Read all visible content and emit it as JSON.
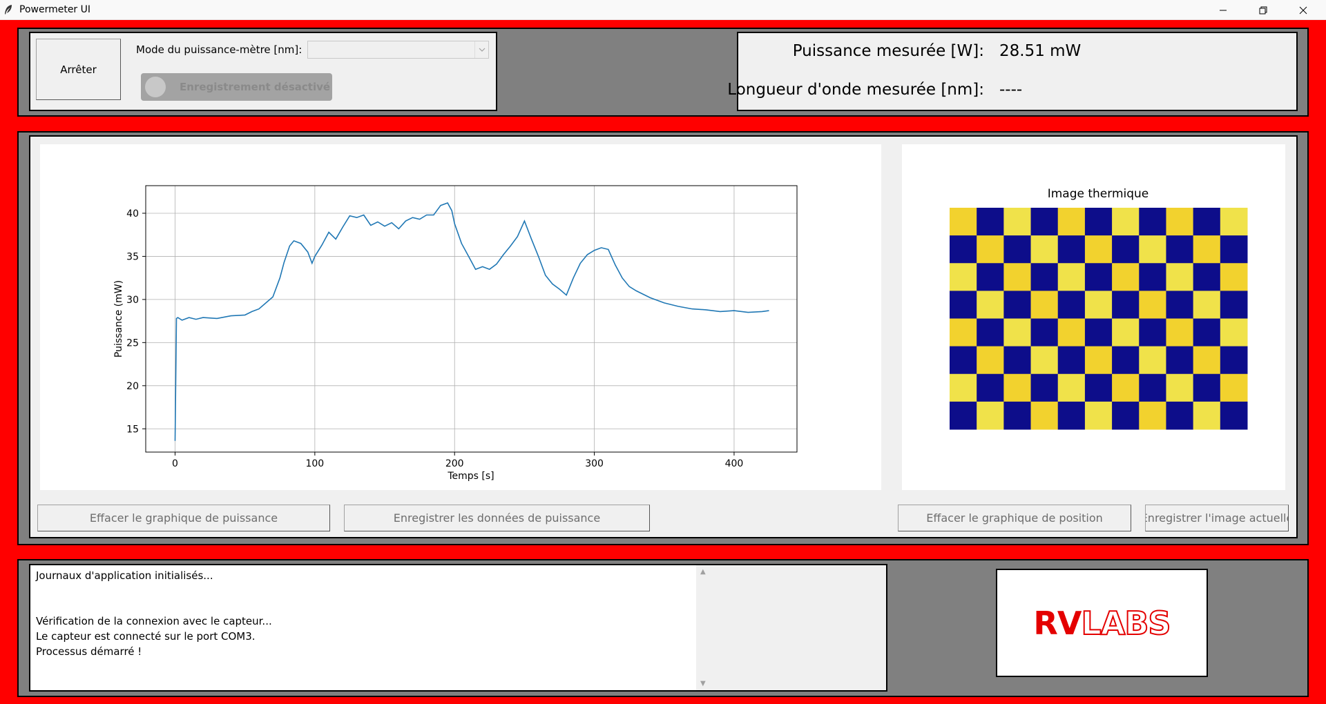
{
  "window": {
    "title": "Powermeter UI"
  },
  "controls": {
    "stop_label": "Arrêter",
    "mode_label": "Mode du puissance-mètre [nm]:",
    "mode_value": "",
    "record_label": "Enregistrement désactivé"
  },
  "measurements": {
    "power_label": "Puissance mesurée [W]:",
    "power_value": "28.51 mW",
    "wavelength_label": "Longueur d'onde mesurée [nm]:",
    "wavelength_value": "----"
  },
  "chart_data": [
    {
      "type": "line",
      "title": "",
      "xlabel": "Temps [s]",
      "ylabel": "Puissance (mW)",
      "xlim": [
        -21,
        445
      ],
      "ylim": [
        12.3,
        43.2
      ],
      "xticks": [
        0,
        100,
        200,
        300,
        400
      ],
      "yticks": [
        15,
        20,
        25,
        30,
        35,
        40
      ],
      "grid": true,
      "color": "#1f77b4",
      "x": [
        0,
        1,
        2,
        5,
        10,
        15,
        20,
        30,
        40,
        50,
        55,
        60,
        70,
        75,
        78,
        82,
        85,
        90,
        95,
        98,
        100,
        105,
        110,
        115,
        120,
        125,
        130,
        135,
        140,
        145,
        150,
        155,
        160,
        165,
        170,
        175,
        180,
        185,
        190,
        195,
        198,
        200,
        205,
        210,
        215,
        220,
        225,
        230,
        235,
        240,
        245,
        250,
        255,
        260,
        265,
        270,
        275,
        280,
        285,
        290,
        295,
        300,
        305,
        310,
        315,
        320,
        325,
        330,
        340,
        350,
        360,
        370,
        380,
        390,
        400,
        410,
        420,
        425
      ],
      "y": [
        13.6,
        27.8,
        27.9,
        27.6,
        27.9,
        27.7,
        27.9,
        27.8,
        28.1,
        28.2,
        28.6,
        28.9,
        30.3,
        32.5,
        34.3,
        36.2,
        36.8,
        36.5,
        35.5,
        34.2,
        35.0,
        36.3,
        37.8,
        37.0,
        38.4,
        39.7,
        39.5,
        39.8,
        38.6,
        39.0,
        38.5,
        38.9,
        38.2,
        39.1,
        39.5,
        39.3,
        39.8,
        39.8,
        40.9,
        41.2,
        40.3,
        38.8,
        36.5,
        35.0,
        33.5,
        33.8,
        33.5,
        34.1,
        35.2,
        36.2,
        37.3,
        39.1,
        37.0,
        35.0,
        32.8,
        31.8,
        31.2,
        30.5,
        32.5,
        34.2,
        35.2,
        35.7,
        36.0,
        35.8,
        34.0,
        32.5,
        31.5,
        31.0,
        30.2,
        29.6,
        29.2,
        28.9,
        28.8,
        28.6,
        28.7,
        28.5,
        28.6,
        28.7
      ]
    },
    {
      "type": "heatmap",
      "title": "Image thermique",
      "rows": 8,
      "cols": 11,
      "colors": [
        "#0d0d8a",
        "#f2d22e",
        "#f5a623",
        "#f0e24a"
      ]
    }
  ],
  "buttons": {
    "clear_power": "Effacer le graphique de puissance",
    "save_power": "Enregistrer les données de puissance",
    "clear_position": "Effacer le graphique de position",
    "save_image": "Enregistrer l'image actuelle"
  },
  "log": {
    "lines": [
      "Journaux d'application initialisés...",
      "",
      "",
      "Vérification de la connexion avec le capteur...",
      "Le capteur est connecté sur le port COM3.",
      "Processus démarré !"
    ]
  },
  "logo": {
    "part1": "RV",
    "part2": "LABS"
  },
  "colors": {
    "background": "#ff0000",
    "panel": "#808080",
    "frame": "#f0f0f0",
    "line": "#1f77b4",
    "logo": "#e40000"
  }
}
